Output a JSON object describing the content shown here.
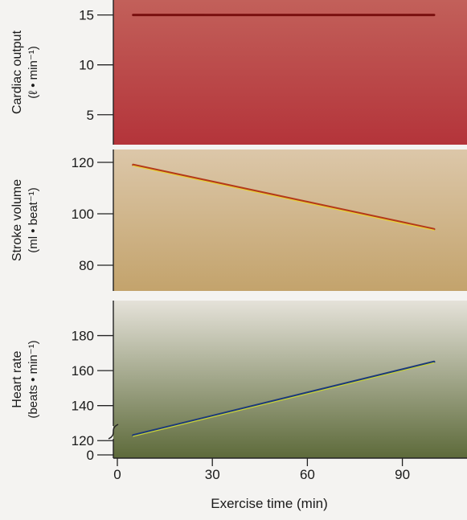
{
  "chart_data": [
    {
      "type": "line",
      "ylabel_line1": "Cardiac output",
      "ylabel_line2": "(ℓ • min⁻¹)",
      "yticks": [
        5,
        10,
        15
      ],
      "ylim": [
        2,
        16.5
      ],
      "xlim": [
        0,
        105
      ],
      "series": [
        {
          "x": [
            5,
            100
          ],
          "y": [
            15,
            15
          ],
          "color": "#7a1010"
        }
      ],
      "bg_top": "#c2605a",
      "bg_bottom": "#b4343a"
    },
    {
      "type": "line",
      "ylabel_line1": "Stroke volume",
      "ylabel_line2": "(ml • beat⁻¹)",
      "yticks": [
        80,
        100,
        120
      ],
      "ylim": [
        70,
        125
      ],
      "xlim": [
        0,
        105
      ],
      "series": [
        {
          "x": [
            5,
            100
          ],
          "y": [
            119,
            94
          ],
          "color": "#b43a1a",
          "highlight": "#e8d23a"
        }
      ],
      "bg_top": "#dcc7a9",
      "bg_bottom": "#c3a36c"
    },
    {
      "type": "line",
      "ylabel_line1": "Heart rate",
      "ylabel_line2": "(beats • min⁻¹)",
      "yticks": [
        120,
        140,
        160,
        180
      ],
      "yticks_below_break": [
        0
      ],
      "ylim": [
        110,
        200
      ],
      "xlim": [
        0,
        105
      ],
      "series": [
        {
          "x": [
            5,
            100
          ],
          "y": [
            123,
            165
          ],
          "color": "#1d3a7a",
          "highlight": "#c8d23a"
        }
      ],
      "bg_top": "#e5e2d9",
      "bg_bottom": "#5d6a3a"
    }
  ],
  "x_axis": {
    "label": "Exercise time (min)",
    "ticks": [
      0,
      30,
      60,
      90
    ]
  }
}
